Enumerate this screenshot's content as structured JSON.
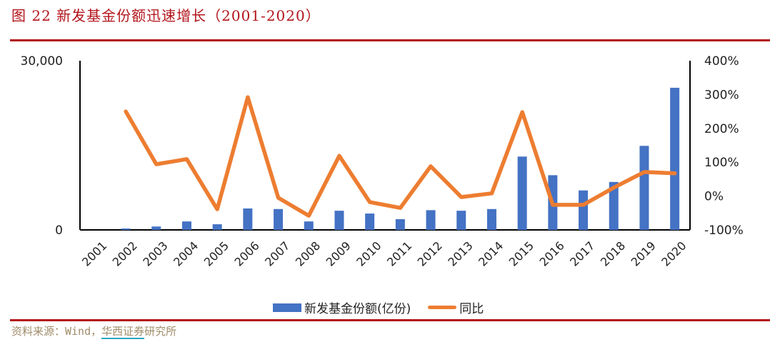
{
  "header": {
    "title": "图 22 新发基金份额迅速增长（2001-2020）"
  },
  "footer": {
    "source_prefix": "资料来源：Wind，",
    "source_link": "华西证券",
    "source_suffix": "研究所"
  },
  "legend": {
    "bar_label": "新发基金份额(亿份)",
    "line_label": "同比"
  },
  "colors": {
    "bar": "#4472c4",
    "line": "#ed7d31",
    "title": "#b3141b",
    "rule": "#b31217"
  },
  "axes": {
    "left_ticks": [
      "0",
      "30,000"
    ],
    "right_ticks": [
      "-100%",
      "0%",
      "100%",
      "200%",
      "300%",
      "400%"
    ]
  },
  "chart_data": {
    "type": "bar+line",
    "title": "新发基金份额迅速增长（2001-2020）",
    "categories": [
      "2001",
      "2002",
      "2003",
      "2004",
      "2005",
      "2006",
      "2007",
      "2008",
      "2009",
      "2010",
      "2011",
      "2012",
      "2013",
      "2014",
      "2015",
      "2016",
      "2017",
      "2018",
      "2019",
      "2020"
    ],
    "series": [
      {
        "name": "新发基金份额(亿份)",
        "type": "bar",
        "axis": "left",
        "values": [
          0,
          250,
          600,
          1500,
          1000,
          3800,
          3700,
          1500,
          3400,
          2900,
          1900,
          3500,
          3400,
          3700,
          13000,
          9700,
          7000,
          8500,
          14900,
          25200
        ]
      },
      {
        "name": "同比",
        "type": "line",
        "axis": "right",
        "unit": "%",
        "values": [
          null,
          250,
          94,
          109,
          -39,
          292,
          -5,
          -58,
          119,
          -18,
          -35,
          88,
          -3,
          8,
          248,
          -26,
          -26,
          25,
          71,
          67
        ]
      }
    ],
    "ylim_left": [
      0,
      30000
    ],
    "ylim_right": [
      -100,
      400
    ],
    "xlabel": "",
    "ylabel_left": "",
    "ylabel_right": "",
    "grid": false,
    "legend_position": "bottom"
  }
}
